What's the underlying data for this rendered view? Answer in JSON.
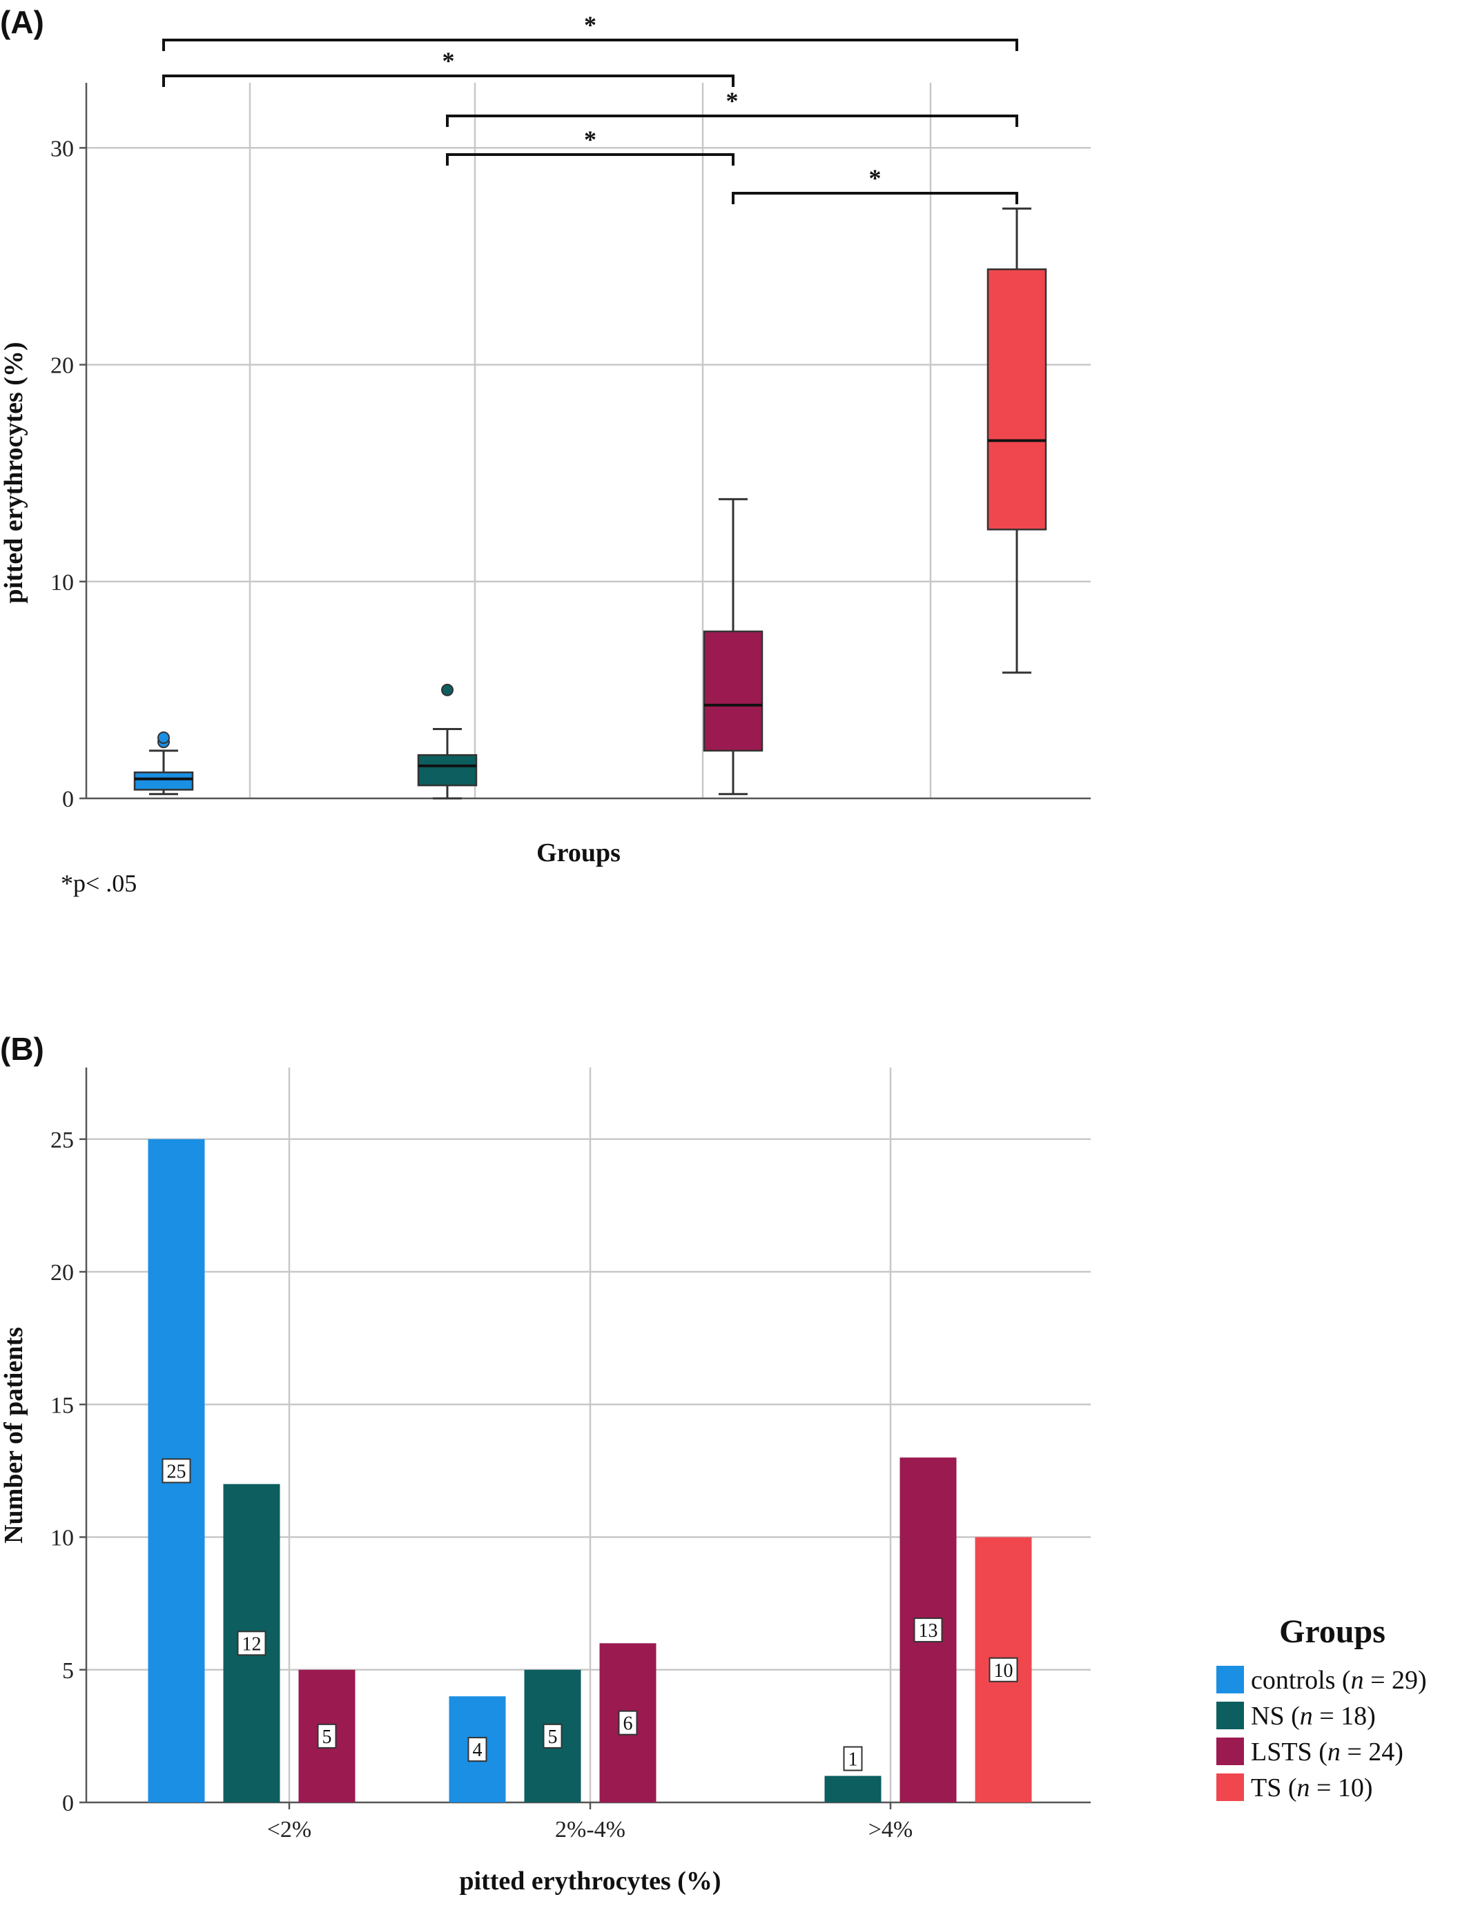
{
  "chart_data": [
    {
      "panel_label": "(A)",
      "type": "box",
      "xlabel": "Groups",
      "ylabel": "pitted erythrocytes (%)",
      "ylim": [
        0,
        33
      ],
      "yticks": [
        "0",
        "10",
        "20",
        "30"
      ],
      "ytick_values": [
        0,
        10,
        20,
        30
      ],
      "grid": true,
      "note": "*p< .05",
      "groups": [
        {
          "name": "controls",
          "color": "#1a8fe3",
          "whisker_low": 0.2,
          "q1": 0.4,
          "median": 0.9,
          "q3": 1.2,
          "whisker_high": 2.2,
          "outliers": [
            2.6,
            2.8
          ]
        },
        {
          "name": "NS",
          "color": "#0d5e5e",
          "whisker_low": 0.0,
          "q1": 0.6,
          "median": 1.5,
          "q3": 2.0,
          "whisker_high": 3.2,
          "outliers": [
            5.0
          ]
        },
        {
          "name": "LSTS",
          "color": "#9b1a50",
          "whisker_low": 0.2,
          "q1": 2.2,
          "median": 4.3,
          "q3": 7.7,
          "whisker_high": 13.8,
          "outliers": []
        },
        {
          "name": "TS",
          "color": "#f0474e",
          "whisker_low": 5.8,
          "q1": 12.4,
          "median": 16.5,
          "q3": 24.4,
          "whisker_high": 27.2,
          "outliers": []
        }
      ],
      "significance": [
        {
          "from": 0,
          "to": 3,
          "label": "*"
        },
        {
          "from": 0,
          "to": 2,
          "label": "*"
        },
        {
          "from": 1,
          "to": 3,
          "label": "*"
        },
        {
          "from": 1,
          "to": 2,
          "label": "*"
        },
        {
          "from": 2,
          "to": 3,
          "label": "*"
        }
      ]
    },
    {
      "panel_label": "(B)",
      "type": "bar",
      "xlabel": "pitted erythrocytes (%)",
      "ylabel": "Number of patients",
      "ylim": [
        0,
        27.7
      ],
      "yticks": [
        "0",
        "5",
        "10",
        "15",
        "20",
        "25"
      ],
      "ytick_values": [
        0,
        5,
        10,
        15,
        20,
        25
      ],
      "grid": true,
      "categories": [
        "<2%",
        "2%-4%",
        ">4%"
      ],
      "series": [
        {
          "name": "controls",
          "color": "#1a8fe3",
          "values": [
            25,
            4,
            0
          ]
        },
        {
          "name": "NS",
          "color": "#0d5e5e",
          "values": [
            12,
            5,
            1
          ]
        },
        {
          "name": "LSTS",
          "color": "#9b1a50",
          "values": [
            5,
            6,
            13
          ]
        },
        {
          "name": "TS",
          "color": "#f0474e",
          "values": [
            0,
            0,
            10
          ]
        }
      ],
      "legend": {
        "title": "Groups",
        "placement": "right",
        "items": [
          {
            "name": "controls",
            "n": "29"
          },
          {
            "name": "NS",
            "n": "18"
          },
          {
            "name": "LSTS",
            "n": "24"
          },
          {
            "name": "TS",
            "n": "10"
          }
        ]
      }
    }
  ]
}
